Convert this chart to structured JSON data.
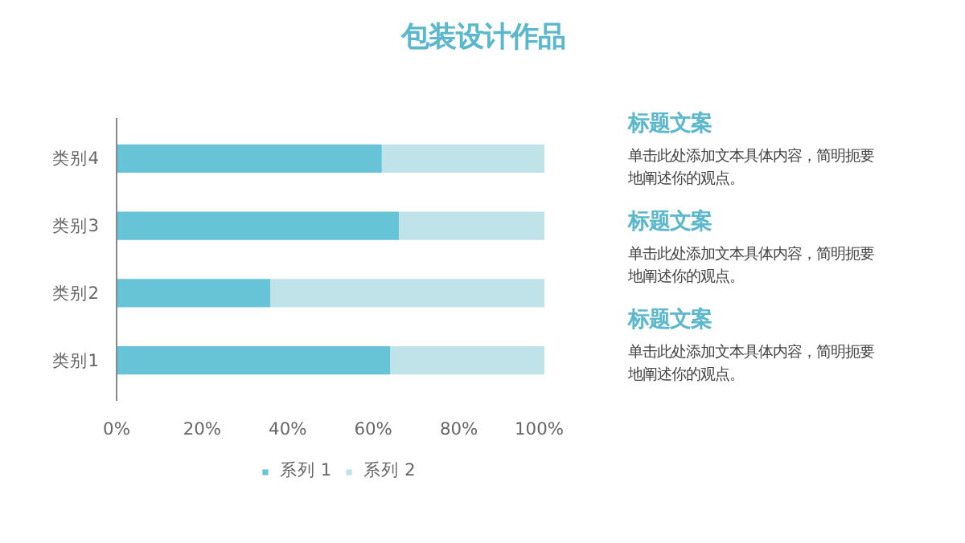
{
  "chart_data": {
    "type": "bar",
    "orientation": "horizontal",
    "stacked": true,
    "title": "包装设计作品",
    "categories": [
      "类别4",
      "类别3",
      "类别2",
      "类别1"
    ],
    "series": [
      {
        "name": "系列 1",
        "color": "#67c3d6",
        "values": [
          62,
          66,
          36,
          64
        ]
      },
      {
        "name": "系列 2",
        "color": "#c0e3e9",
        "values": [
          38,
          34,
          64,
          36
        ]
      }
    ],
    "xlim": [
      0,
      100
    ],
    "xticks": [
      {
        "value": 0,
        "label": "0%"
      },
      {
        "value": 20,
        "label": "20%"
      },
      {
        "value": 40,
        "label": "40%"
      },
      {
        "value": 60,
        "label": "60%"
      },
      {
        "value": 80,
        "label": "80%"
      },
      {
        "value": 100,
        "label": "100%"
      }
    ],
    "grid": false,
    "legend": "bottom",
    "annotations": [
      "标题文案",
      "单击此处添加文本具体内容，简明扼要地阐述你的观点。",
      "标题文案",
      "单击此处添加文本具体内容，简明扼要地阐述你的观点。",
      "标题文案",
      "单击此处添加文本具体内容，简明扼要地阐述你的观点。"
    ]
  }
}
